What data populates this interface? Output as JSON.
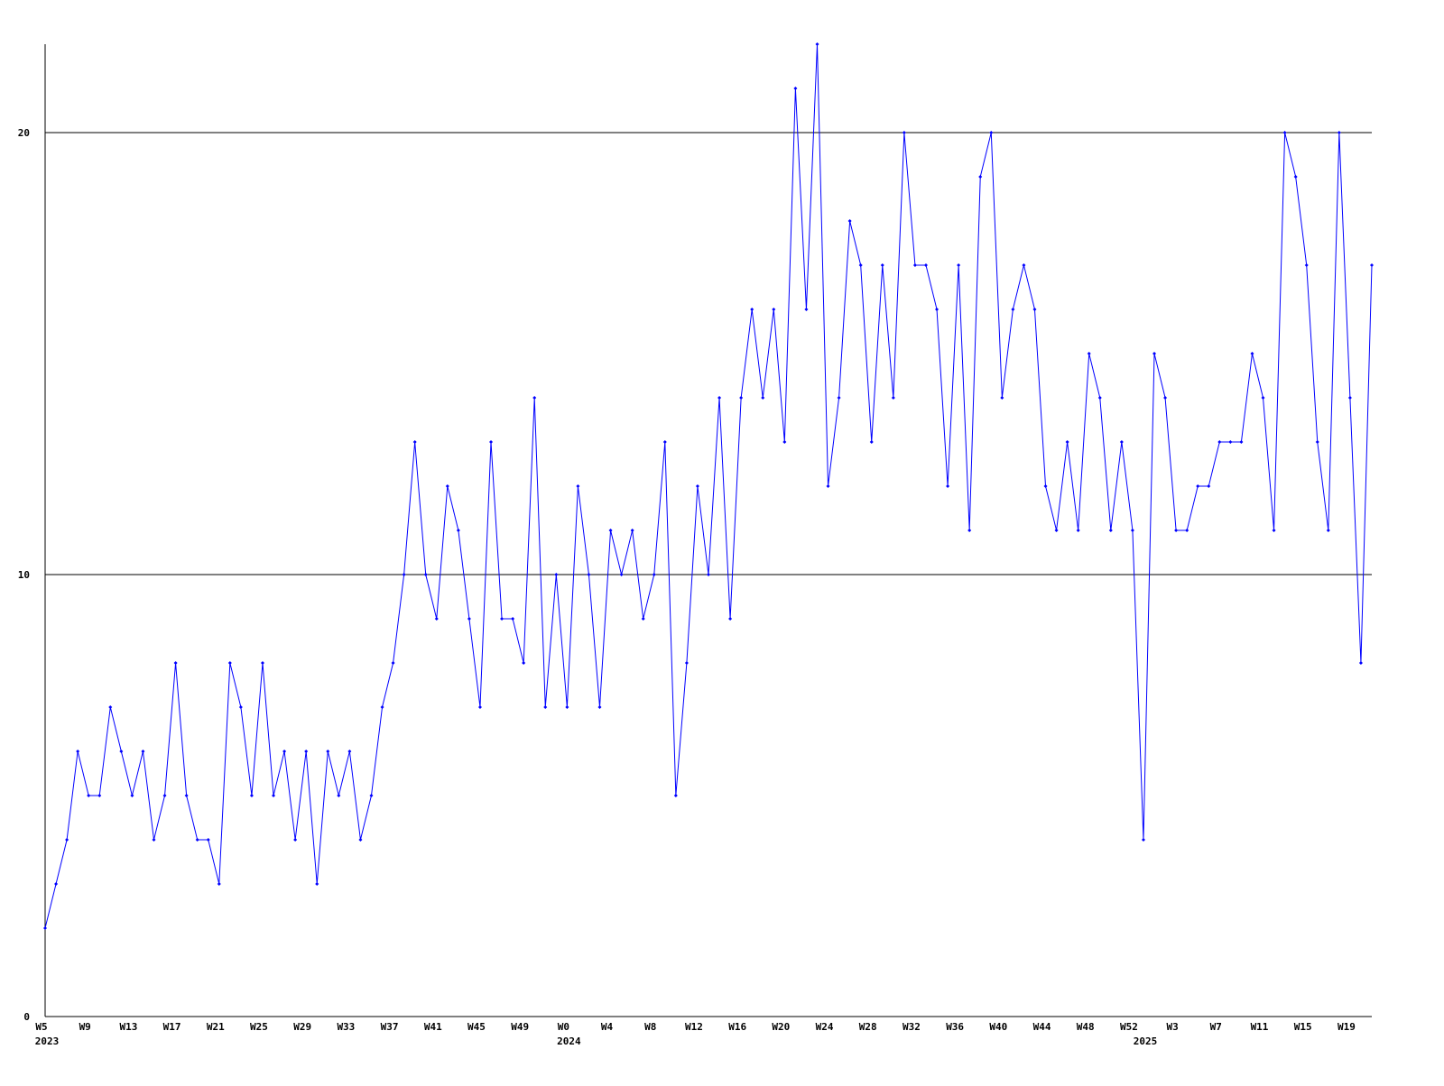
{
  "chart_data": {
    "type": "line",
    "categories": [
      "W5",
      null,
      null,
      null,
      "W9",
      null,
      null,
      null,
      "W13",
      null,
      null,
      null,
      "W17",
      null,
      null,
      null,
      "W21",
      null,
      null,
      null,
      "W25",
      null,
      null,
      null,
      "W29",
      null,
      null,
      null,
      "W33",
      null,
      null,
      null,
      "W37",
      null,
      null,
      null,
      "W41",
      null,
      null,
      null,
      "W45",
      null,
      null,
      null,
      "W49",
      null,
      null,
      null,
      "W0",
      null,
      null,
      null,
      "W4",
      null,
      null,
      null,
      "W8",
      null,
      null,
      null,
      "W12",
      null,
      null,
      null,
      "W16",
      null,
      null,
      null,
      "W20",
      null,
      null,
      null,
      "W24",
      null,
      null,
      null,
      "W28",
      null,
      null,
      null,
      "W32",
      null,
      null,
      null,
      "W36",
      null,
      null,
      null,
      "W40",
      null,
      null,
      null,
      "W44",
      null,
      null,
      null,
      "W48",
      null,
      null,
      null,
      "W52",
      null,
      null,
      null,
      "W3",
      null,
      null,
      null,
      "W7",
      null,
      null,
      null,
      "W11",
      null,
      null,
      null,
      "W15",
      null,
      null,
      null,
      "W19",
      null,
      null
    ],
    "years": [
      "2023",
      null,
      null,
      null,
      null,
      null,
      null,
      null,
      null,
      null,
      null,
      null,
      null,
      null,
      null,
      null,
      null,
      null,
      null,
      null,
      null,
      null,
      null,
      null,
      null,
      null,
      null,
      null,
      null,
      null,
      null,
      null,
      null,
      null,
      null,
      null,
      null,
      null,
      null,
      null,
      null,
      null,
      null,
      null,
      null,
      null,
      null,
      null,
      "2024",
      null,
      null,
      null,
      null,
      null,
      null,
      null,
      null,
      null,
      null,
      null,
      null,
      null,
      null,
      null,
      null,
      null,
      null,
      null,
      null,
      null,
      null,
      null,
      null,
      null,
      null,
      null,
      null,
      null,
      null,
      null,
      null,
      null,
      null,
      null,
      null,
      null,
      null,
      null,
      null,
      null,
      null,
      null,
      null,
      null,
      null,
      null,
      null,
      null,
      null,
      null,
      null,
      "2025",
      null,
      null,
      null,
      null,
      null,
      null,
      null,
      null,
      null,
      null,
      null,
      null,
      null,
      null,
      null,
      null,
      null,
      null,
      null,
      null,
      null
    ],
    "series": [
      {
        "color": "#0000ff",
        "values": [
          2,
          3,
          4,
          6,
          5,
          5,
          7,
          6,
          5,
          6,
          4,
          5,
          8,
          5,
          4,
          4,
          3,
          8,
          7,
          5,
          8,
          5,
          6,
          4,
          6,
          3,
          6,
          5,
          6,
          4,
          5,
          7,
          8,
          10,
          13,
          10,
          9,
          12,
          11,
          9,
          7,
          13,
          9,
          9,
          8,
          14,
          7,
          10,
          7,
          12,
          10,
          7,
          11,
          10,
          11,
          9,
          10,
          13,
          5,
          8,
          12,
          10,
          14,
          9,
          14,
          16,
          14,
          16,
          13,
          21,
          16,
          22,
          12,
          14,
          18,
          17,
          13,
          17,
          14,
          20,
          17,
          17,
          16,
          12,
          17,
          11,
          19,
          20,
          14,
          16,
          17,
          16,
          12,
          11,
          13,
          11,
          15,
          14,
          11,
          13,
          11,
          4,
          15,
          14,
          11,
          11,
          12,
          12,
          13,
          13,
          13,
          15,
          14,
          11,
          20,
          19,
          17,
          13,
          11,
          20,
          14,
          8,
          17
        ]
      }
    ],
    "ylim": [
      0,
      22
    ],
    "yticks": [
      0,
      10,
      20
    ],
    "grid": true
  }
}
